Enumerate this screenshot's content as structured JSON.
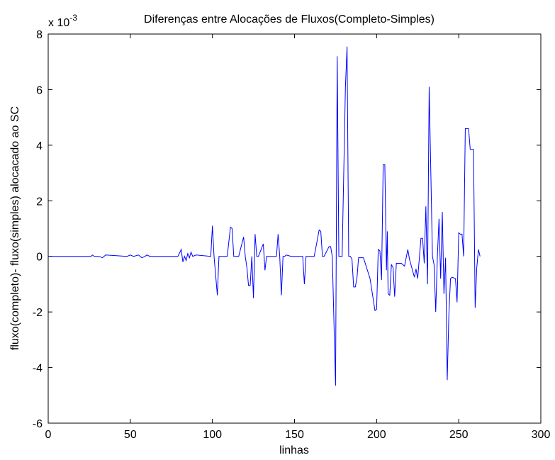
{
  "chart_data": {
    "type": "line",
    "title": "Diferenças entre Alocações de Fluxos(Completo-Simples)",
    "x_label": "linhas",
    "y_label": "fluxo(completo)- fluxo(simples) alocacado ao SC",
    "y_multiplier": {
      "base": "x 10",
      "exponent": "-3"
    },
    "xlim": [
      0,
      300
    ],
    "xticks": [
      0,
      50,
      100,
      150,
      200,
      250,
      300
    ],
    "ylim": [
      -6,
      8
    ],
    "yticks": [
      -6,
      -4,
      -2,
      0,
      2,
      4,
      6,
      8
    ],
    "grid": false,
    "series": [
      {
        "color": "#0000ff",
        "x": [
          1,
          26,
          27,
          28,
          31,
          33,
          34,
          35,
          48,
          50,
          52,
          55,
          57,
          59,
          60,
          62,
          79,
          81,
          82,
          83,
          84,
          85,
          86,
          87,
          88,
          90,
          99,
          100,
          101,
          103,
          104,
          109,
          111,
          112,
          113,
          116,
          119,
          120,
          121,
          122,
          123,
          124,
          125,
          126,
          127,
          128,
          131,
          132,
          133,
          134,
          139,
          140,
          141,
          142,
          143,
          144,
          145,
          148,
          155,
          156,
          157,
          158,
          162,
          165,
          166,
          167,
          168,
          171,
          172,
          173,
          175,
          176,
          177,
          178,
          179,
          181,
          182,
          183,
          184,
          185,
          186,
          187,
          188,
          189,
          190,
          192,
          196,
          199,
          200,
          201,
          202,
          203,
          204,
          205,
          206,
          206.5,
          207,
          208,
          209,
          210,
          211,
          212,
          215,
          217,
          219,
          220,
          223,
          224,
          225,
          227,
          228,
          229,
          230,
          231,
          232,
          234,
          235,
          236,
          237,
          238,
          239,
          240,
          241,
          242,
          243,
          244,
          245,
          246,
          248,
          249,
          250,
          251,
          252,
          253,
          254,
          255,
          256,
          257,
          258,
          259,
          260,
          261,
          262,
          263
        ],
        "values": [
          0,
          0,
          0.05,
          0,
          0,
          -0.05,
          0,
          0.05,
          0,
          0.05,
          0,
          0.05,
          -0.05,
          0,
          0.05,
          0,
          0,
          0.25,
          -0.2,
          0,
          -0.15,
          0.1,
          -0.05,
          0.15,
          0,
          0.05,
          0,
          1.1,
          0,
          -1.4,
          0,
          0,
          1.05,
          1.0,
          0,
          0,
          0.7,
          0,
          -0.4,
          -1.05,
          -1.05,
          0,
          -1.5,
          0.8,
          0,
          0,
          0.45,
          -0.5,
          0,
          0,
          0,
          0.8,
          0,
          -1.4,
          0,
          0,
          0.05,
          0,
          0,
          -1.0,
          0,
          0,
          0,
          0.95,
          0.9,
          0,
          0,
          0.35,
          0.35,
          0,
          -4.65,
          7.2,
          0,
          0,
          0,
          6.1,
          7.55,
          0,
          0,
          -0.1,
          -1.1,
          -1.1,
          -0.8,
          -0.05,
          -0.05,
          -0.05,
          -0.8,
          -1.95,
          -1.9,
          0.25,
          0.2,
          -0.85,
          3.3,
          3.3,
          -0.5,
          0.9,
          -1.35,
          -1.4,
          -0.3,
          -0.4,
          -1.45,
          -0.25,
          -0.25,
          -0.35,
          0.25,
          -0.1,
          -0.75,
          -0.45,
          -0.8,
          0.65,
          0.65,
          -0.25,
          1.8,
          -1.0,
          6.1,
          0,
          -0.3,
          -2.0,
          0,
          1.35,
          -0.8,
          1.6,
          -1.35,
          -0.05,
          -4.45,
          -2.1,
          -0.8,
          -0.75,
          -0.8,
          -1.65,
          0.85,
          0.8,
          0.8,
          0.0,
          4.6,
          4.6,
          4.6,
          3.85,
          3.85,
          3.85,
          -1.85,
          -0.4,
          0.25,
          0
        ]
      }
    ]
  }
}
